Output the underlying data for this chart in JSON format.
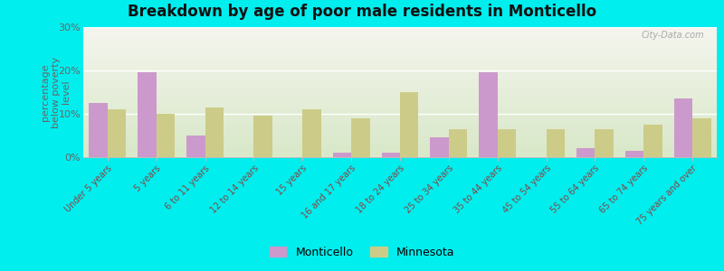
{
  "title": "Breakdown by age of poor male residents in Monticello",
  "ylabel": "percentage\nbelow poverty\nlevel",
  "categories": [
    "Under 5 years",
    "5 years",
    "6 to 11 years",
    "12 to 14 years",
    "15 years",
    "16 and 17 years",
    "18 to 24 years",
    "25 to 34 years",
    "35 to 44 years",
    "45 to 54 years",
    "55 to 64 years",
    "65 to 74 years",
    "75 years and over"
  ],
  "monticello": [
    12.5,
    19.5,
    5.0,
    0.0,
    0.0,
    1.0,
    1.0,
    4.5,
    19.5,
    0.0,
    2.0,
    1.5,
    13.5
  ],
  "minnesota": [
    11.0,
    10.0,
    11.5,
    9.5,
    11.0,
    9.0,
    15.0,
    6.5,
    6.5,
    6.5,
    6.5,
    7.5,
    9.0
  ],
  "monticello_color": "#cc99cc",
  "minnesota_color": "#cccc88",
  "background_top": "#f5f5ee",
  "background_bottom": "#d8e8c8",
  "outer_background": "#00eeee",
  "ylim": [
    0,
    30
  ],
  "yticks": [
    0,
    10,
    20,
    30
  ],
  "ytick_labels": [
    "0%",
    "10%",
    "20%",
    "30%"
  ]
}
